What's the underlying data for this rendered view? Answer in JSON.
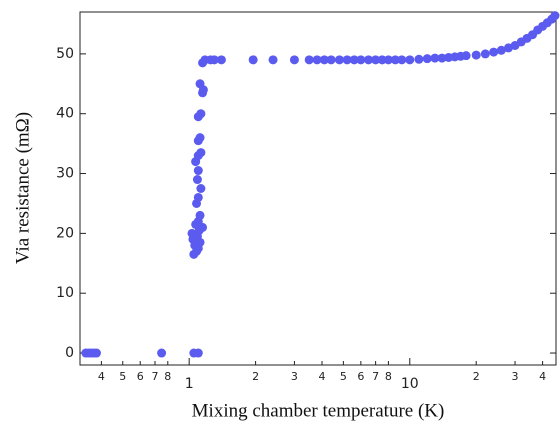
{
  "chart_data": {
    "type": "scatter",
    "xlabel": "Mixing chamber temperature (K)",
    "ylabel": "Via resistance (mΩ)",
    "color": "#5b5bef",
    "xscale": "log",
    "xlim": [
      0.32,
      46
    ],
    "ylim": [
      -2,
      57
    ],
    "xticks": [
      {
        "value": 0.4,
        "label": "4"
      },
      {
        "value": 0.5,
        "label": "5"
      },
      {
        "value": 0.6,
        "label": "6"
      },
      {
        "value": 0.7,
        "label": "7"
      },
      {
        "value": 0.8,
        "label": "8"
      },
      1,
      2,
      3,
      4,
      5,
      6,
      7,
      8,
      10,
      {
        "value": 20,
        "label": "2"
      },
      {
        "value": 30,
        "label": "3"
      },
      {
        "value": 40,
        "label": "4"
      }
    ],
    "yticks": [
      0,
      10,
      20,
      30,
      40,
      50
    ],
    "x": [
      0.34,
      0.35,
      0.36,
      0.37,
      0.38,
      0.75,
      1.05,
      1.1,
      1.05,
      1.08,
      1.1,
      1.06,
      1.12,
      1.04,
      1.09,
      1.03,
      1.11,
      1.15,
      1.07,
      1.1,
      1.12,
      1.08,
      1.1,
      1.13,
      1.09,
      1.1,
      1.07,
      1.1,
      1.13,
      1.1,
      1.12,
      1.1,
      1.13,
      1.15,
      1.12,
      1.16,
      1.15,
      1.18,
      1.25,
      1.3,
      1.4,
      1.95,
      2.4,
      3,
      3.5,
      3.8,
      4.1,
      4.4,
      4.8,
      5.2,
      5.6,
      6,
      6.5,
      7,
      7.5,
      8,
      8.6,
      9.2,
      10,
      11,
      12,
      13,
      14,
      15,
      16,
      17,
      18,
      20,
      22,
      24,
      26,
      28,
      30,
      32,
      34,
      36,
      38,
      40,
      42,
      44,
      45.5
    ],
    "y": [
      0,
      0,
      0,
      0,
      0,
      0,
      0,
      0,
      16.5,
      17,
      17.5,
      18,
      18.5,
      19,
      19.5,
      20,
      20.5,
      21,
      21.5,
      22,
      23,
      25,
      26,
      27.5,
      29,
      30.5,
      32,
      33,
      33.5,
      35.5,
      36,
      39.5,
      40,
      43.5,
      45,
      44,
      48.5,
      49,
      49,
      49,
      49,
      49,
      49,
      49,
      49,
      49,
      49,
      49,
      49,
      49,
      49,
      49,
      49,
      49,
      49,
      49,
      49,
      49,
      49,
      49.1,
      49.2,
      49.3,
      49.3,
      49.4,
      49.5,
      49.6,
      49.7,
      49.8,
      50,
      50.3,
      50.6,
      51,
      51.4,
      52,
      52.6,
      53.2,
      54,
      54.6,
      55.2,
      55.8,
      56.4
    ]
  }
}
